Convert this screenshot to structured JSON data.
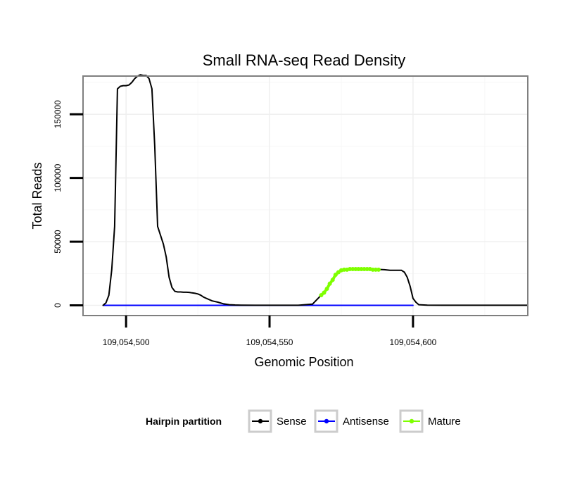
{
  "chart_data": {
    "type": "line",
    "title": "Small RNA-seq Read Density",
    "xlabel": "Genomic Position",
    "ylabel": "Total Reads",
    "xlim": [
      109054485,
      109054640
    ],
    "ylim": [
      -8000,
      180000
    ],
    "x_ticks": [
      109054500,
      109054550,
      109054600
    ],
    "x_tick_labels": [
      "109,054,500",
      "109,054,550",
      "109,054,600"
    ],
    "y_ticks": [
      0,
      50000,
      100000,
      150000
    ],
    "y_tick_labels": [
      "0",
      "50000",
      "100000",
      "150000"
    ],
    "grid": true,
    "legend": {
      "title": "Hairpin partition",
      "position": "bottom",
      "entries": [
        "Sense",
        "Antisense",
        "Mature"
      ]
    },
    "colors": {
      "Sense": "#000000",
      "Antisense": "#0000ff",
      "Mature": "#7fff00"
    },
    "series": [
      {
        "name": "Sense",
        "x": [
          109054492,
          109054493,
          109054494,
          109054495,
          109054496,
          109054497,
          109054498,
          109054499,
          109054500,
          109054501,
          109054502,
          109054503,
          109054504,
          109054505,
          109054506,
          109054507,
          109054508,
          109054509,
          109054510,
          109054511,
          109054512,
          109054513,
          109054514,
          109054515,
          109054516,
          109054517,
          109054518,
          109054519,
          109054520,
          109054521,
          109054522,
          109054523,
          109054524,
          109054525,
          109054526,
          109054527,
          109054528,
          109054530,
          109054532,
          109054534,
          109054536,
          109054538,
          109054540,
          109054545,
          109054550,
          109054555,
          109054560,
          109054565,
          109054568,
          109054570,
          109054572,
          109054574,
          109054576,
          109054578,
          109054580,
          109054585,
          109054590,
          109054592,
          109054594,
          109054595,
          109054596,
          109054597,
          109054598,
          109054599,
          109054600,
          109054601,
          109054602,
          109054605,
          109054610,
          109054620,
          109054630,
          109054640
        ],
        "values": [
          0,
          2000,
          8000,
          28000,
          62000,
          170000,
          172000,
          172500,
          172500,
          173000,
          175000,
          178000,
          180000,
          181000,
          180500,
          180500,
          178000,
          170000,
          125000,
          62000,
          55000,
          48000,
          38000,
          22000,
          14000,
          11000,
          10500,
          10500,
          10300,
          10300,
          10200,
          9800,
          9500,
          9000,
          8000,
          6500,
          5500,
          3500,
          2500,
          1200,
          500,
          300,
          200,
          100,
          100,
          100,
          100,
          1000,
          8000,
          13000,
          20000,
          26000,
          28000,
          28500,
          28500,
          28500,
          28000,
          27500,
          27500,
          27500,
          27500,
          26000,
          22000,
          15000,
          5500,
          2500,
          500,
          200,
          100,
          100,
          100,
          100
        ]
      },
      {
        "name": "Antisense",
        "x": [
          109054492,
          109054600
        ],
        "values": [
          0,
          0
        ]
      },
      {
        "name": "Mature",
        "x": [
          109054568,
          109054569,
          109054570,
          109054571,
          109054572,
          109054573,
          109054574,
          109054575,
          109054576,
          109054577,
          109054578,
          109054579,
          109054580,
          109054581,
          109054582,
          109054583,
          109054584,
          109054585,
          109054586,
          109054587,
          109054588
        ],
        "values": [
          8000,
          10000,
          13000,
          17000,
          20000,
          24000,
          26000,
          27500,
          28000,
          28000,
          28500,
          28500,
          28500,
          28500,
          28500,
          28500,
          28500,
          28500,
          28000,
          28000,
          28000
        ]
      }
    ]
  }
}
